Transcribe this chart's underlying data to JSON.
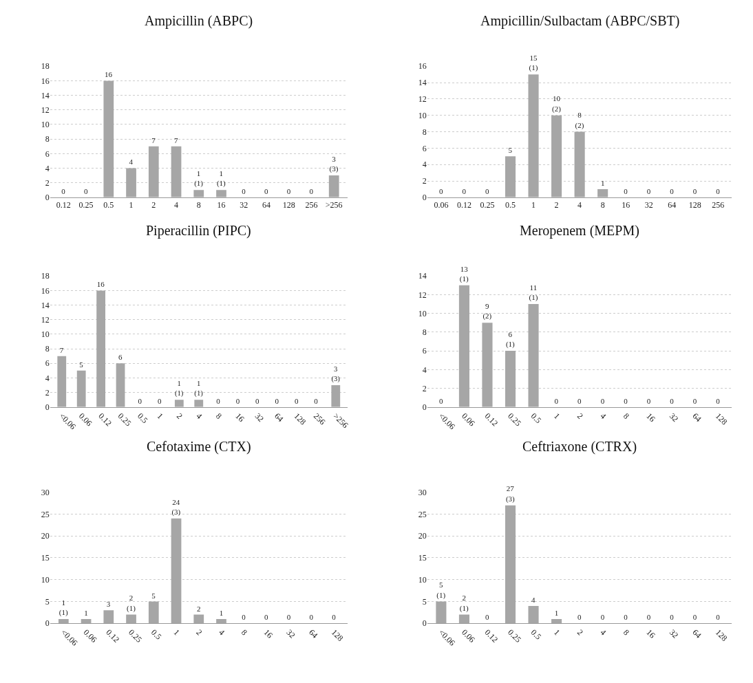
{
  "chart_data": [
    {
      "type": "bar",
      "title": "Ampicillin (ABPC)",
      "categories": [
        "0.12",
        "0.25",
        "0.5",
        "1",
        "2",
        "4",
        "8",
        "16",
        "32",
        "64",
        "128",
        "256",
        ">256"
      ],
      "values": [
        0,
        0,
        16,
        4,
        7,
        7,
        1,
        1,
        0,
        0,
        0,
        0,
        3
      ],
      "value_labels": [
        "0",
        "0",
        "16",
        "4",
        "7",
        "7",
        "1\n(1)",
        "1\n(1)",
        "0",
        "0",
        "0",
        "0",
        "3\n(3)"
      ],
      "color": "#a6a6a6",
      "ylim": [
        0,
        18
      ],
      "yticks": [
        0,
        2,
        4,
        6,
        8,
        10,
        12,
        14,
        16,
        18
      ],
      "grid": "y"
    },
    {
      "type": "bar",
      "title": "Ampicillin/Sulbactam (ABPC/SBT)",
      "categories": [
        "0.06",
        "0.12",
        "0.25",
        "0.5",
        "1",
        "2",
        "4",
        "8",
        "16",
        "32",
        "64",
        "128",
        "256"
      ],
      "values": [
        0,
        0,
        0,
        5,
        15,
        10,
        8,
        1,
        0,
        0,
        0,
        0,
        0
      ],
      "value_labels": [
        "0",
        "0",
        "0",
        "5",
        "15\n(1)",
        "10\n(2)",
        "8\n(2)",
        "1",
        "0",
        "0",
        "0",
        "0",
        "0"
      ],
      "color": "#a6a6a6",
      "ylim": [
        0,
        16
      ],
      "yticks": [
        0,
        2,
        4,
        6,
        8,
        10,
        12,
        14,
        16
      ],
      "grid": "y"
    },
    {
      "type": "bar",
      "title": "Piperacillin (PIPC)",
      "categories": [
        "<0.06",
        "0.06",
        "0.12",
        "0.25",
        "0.5",
        "1",
        "2",
        "4",
        "8",
        "16",
        "32",
        "64",
        "128",
        "256",
        ">256"
      ],
      "values": [
        7,
        5,
        16,
        6,
        0,
        0,
        1,
        1,
        0,
        0,
        0,
        0,
        0,
        0,
        3
      ],
      "value_labels": [
        "7",
        "5",
        "16",
        "6",
        "0",
        "0",
        "1\n(1)",
        "1\n(1)",
        "0",
        "0",
        "0",
        "0",
        "0",
        "0",
        "3\n(3)"
      ],
      "color": "#a6a6a6",
      "ylim": [
        0,
        18
      ],
      "yticks": [
        0,
        2,
        4,
        6,
        8,
        10,
        12,
        14,
        16,
        18
      ],
      "grid": "y"
    },
    {
      "type": "bar",
      "title": "Meropenem (MEPM)",
      "categories": [
        "<0.06",
        "0.06",
        "0.12",
        "0.25",
        "0.5",
        "1",
        "2",
        "4",
        "8",
        "16",
        "32",
        "64",
        "128"
      ],
      "values": [
        0,
        13,
        9,
        6,
        11,
        0,
        0,
        0,
        0,
        0,
        0,
        0,
        0
      ],
      "value_labels": [
        "0",
        "13\n(1)",
        "9\n(2)",
        "6\n(1)",
        "11\n(1)",
        "0",
        "0",
        "0",
        "0",
        "0",
        "0",
        "0",
        "0"
      ],
      "color": "#a6a6a6",
      "ylim": [
        0,
        14
      ],
      "yticks": [
        0,
        2,
        4,
        6,
        8,
        10,
        12,
        14
      ],
      "grid": "y"
    },
    {
      "type": "bar",
      "title": "Cefotaxime (CTX)",
      "categories": [
        "<0.06",
        "0.06",
        "0.12",
        "0.25",
        "0.5",
        "1",
        "2",
        "4",
        "8",
        "16",
        "32",
        "64",
        "128"
      ],
      "values": [
        1,
        1,
        3,
        2,
        5,
        24,
        2,
        1,
        0,
        0,
        0,
        0,
        0
      ],
      "value_labels": [
        "1\n(1)",
        "1",
        "3",
        "2\n(1)",
        "5",
        "24\n(3)",
        "2",
        "1",
        "0",
        "0",
        "0",
        "0",
        "0"
      ],
      "color": "#a6a6a6",
      "ylim": [
        0,
        30
      ],
      "yticks": [
        0,
        5,
        10,
        15,
        20,
        25,
        30
      ],
      "grid": "y"
    },
    {
      "type": "bar",
      "title": "Ceftriaxone (CTRX)",
      "categories": [
        "<0.06",
        "0.06",
        "0.12",
        "0.25",
        "0.5",
        "1",
        "2",
        "4",
        "8",
        "16",
        "32",
        "64",
        "128"
      ],
      "values": [
        5,
        2,
        0,
        27,
        4,
        1,
        0,
        0,
        0,
        0,
        0,
        0,
        0
      ],
      "value_labels": [
        "5\n(1)",
        "2\n(1)",
        "0",
        "27\n(3)",
        "4",
        "1",
        "0",
        "0",
        "0",
        "0",
        "0",
        "0",
        "0"
      ],
      "color": "#a6a6a6",
      "ylim": [
        0,
        30
      ],
      "yticks": [
        0,
        5,
        10,
        15,
        20,
        25,
        30
      ],
      "grid": "y"
    }
  ]
}
